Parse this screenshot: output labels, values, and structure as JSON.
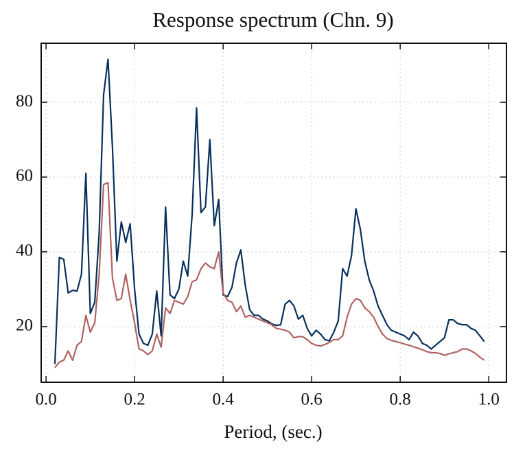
{
  "chart_data": {
    "type": "line",
    "title": "Response spectrum (Chn. 9)",
    "xlabel": "Period, (sec.)",
    "x": [
      0.02,
      0.03,
      0.04,
      0.05,
      0.06,
      0.07,
      0.08,
      0.09,
      0.1,
      0.11,
      0.12,
      0.13,
      0.14,
      0.15,
      0.16,
      0.17,
      0.18,
      0.19,
      0.2,
      0.21,
      0.22,
      0.23,
      0.24,
      0.25,
      0.26,
      0.27,
      0.28,
      0.29,
      0.3,
      0.31,
      0.32,
      0.33,
      0.34,
      0.35,
      0.36,
      0.37,
      0.38,
      0.39,
      0.4,
      0.41,
      0.42,
      0.43,
      0.44,
      0.45,
      0.46,
      0.47,
      0.48,
      0.49,
      0.5,
      0.51,
      0.52,
      0.53,
      0.54,
      0.55,
      0.56,
      0.57,
      0.58,
      0.59,
      0.6,
      0.61,
      0.62,
      0.63,
      0.64,
      0.65,
      0.66,
      0.67,
      0.68,
      0.69,
      0.7,
      0.71,
      0.72,
      0.73,
      0.74,
      0.75,
      0.76,
      0.77,
      0.78,
      0.79,
      0.8,
      0.81,
      0.82,
      0.83,
      0.84,
      0.85,
      0.86,
      0.87,
      0.88,
      0.89,
      0.9,
      0.91,
      0.92,
      0.93,
      0.94,
      0.95,
      0.96,
      0.97,
      0.98,
      0.99
    ],
    "series": [
      {
        "color": "#06305c",
        "values": [
          10,
          38.5,
          38,
          29,
          29.7,
          29.5,
          34,
          61,
          23.5,
          26.5,
          45,
          82,
          91.5,
          68,
          37.5,
          48,
          42.5,
          47.5,
          30,
          18,
          15.5,
          15,
          18,
          29.5,
          17.5,
          52,
          28.5,
          27.5,
          30,
          37.5,
          33.5,
          50,
          78.5,
          50.5,
          52,
          70,
          47,
          54,
          28.5,
          28,
          30.5,
          37,
          40.5,
          31,
          24.5,
          23,
          23,
          22,
          21.5,
          20.7,
          20.3,
          20.5,
          26,
          27,
          25.5,
          22,
          23,
          19.5,
          17.5,
          19,
          18,
          16.5,
          16.2,
          18.5,
          21.5,
          35.5,
          33.5,
          39,
          51.5,
          46,
          37.5,
          32.5,
          29.5,
          25.5,
          23,
          20.5,
          19,
          18.5,
          18,
          17.5,
          16.5,
          18.5,
          17.5,
          15.5,
          15,
          14,
          15,
          16,
          17,
          21.8,
          21.8,
          20.8,
          20.5,
          20.5,
          19.5,
          19,
          17.5,
          16
        ]
      },
      {
        "color": "#b06262",
        "values": [
          9,
          10.5,
          11,
          13.5,
          11,
          15,
          16,
          23,
          18.5,
          21,
          34,
          58,
          58.5,
          33,
          27,
          27.5,
          34,
          27,
          21,
          14,
          13.5,
          12.5,
          13.5,
          18,
          14.5,
          25,
          23.5,
          27,
          26.5,
          26,
          28,
          32,
          32.5,
          35.5,
          37,
          36,
          35.5,
          40,
          29,
          27,
          26.5,
          24,
          25.5,
          22.5,
          23,
          22.5,
          22,
          21.5,
          21,
          20.5,
          19.5,
          19.3,
          19,
          18.5,
          17,
          17.3,
          17.3,
          16.5,
          15.5,
          15,
          14.8,
          15.2,
          15.8,
          16.5,
          16.5,
          17.5,
          22.5,
          26,
          27.5,
          27,
          25,
          24,
          22.5,
          20,
          18,
          16.8,
          16.3,
          16,
          15.7,
          15.3,
          15,
          14.6,
          14.2,
          13.8,
          13.3,
          13,
          13,
          12.8,
          12.3,
          12.7,
          13,
          13.3,
          14,
          14,
          13.5,
          12.8,
          11.8,
          11
        ]
      }
    ],
    "xlim": [
      -0.011,
      1.04
    ],
    "ylim": [
      5.1,
      95.8
    ],
    "xticks": [
      {
        "value": 0,
        "label": "0.0"
      },
      0.2,
      0.4,
      0.6,
      0.8,
      {
        "value": 1,
        "label": "1.0"
      }
    ],
    "yticks": [
      20,
      40,
      60,
      80
    ],
    "grid": true
  }
}
